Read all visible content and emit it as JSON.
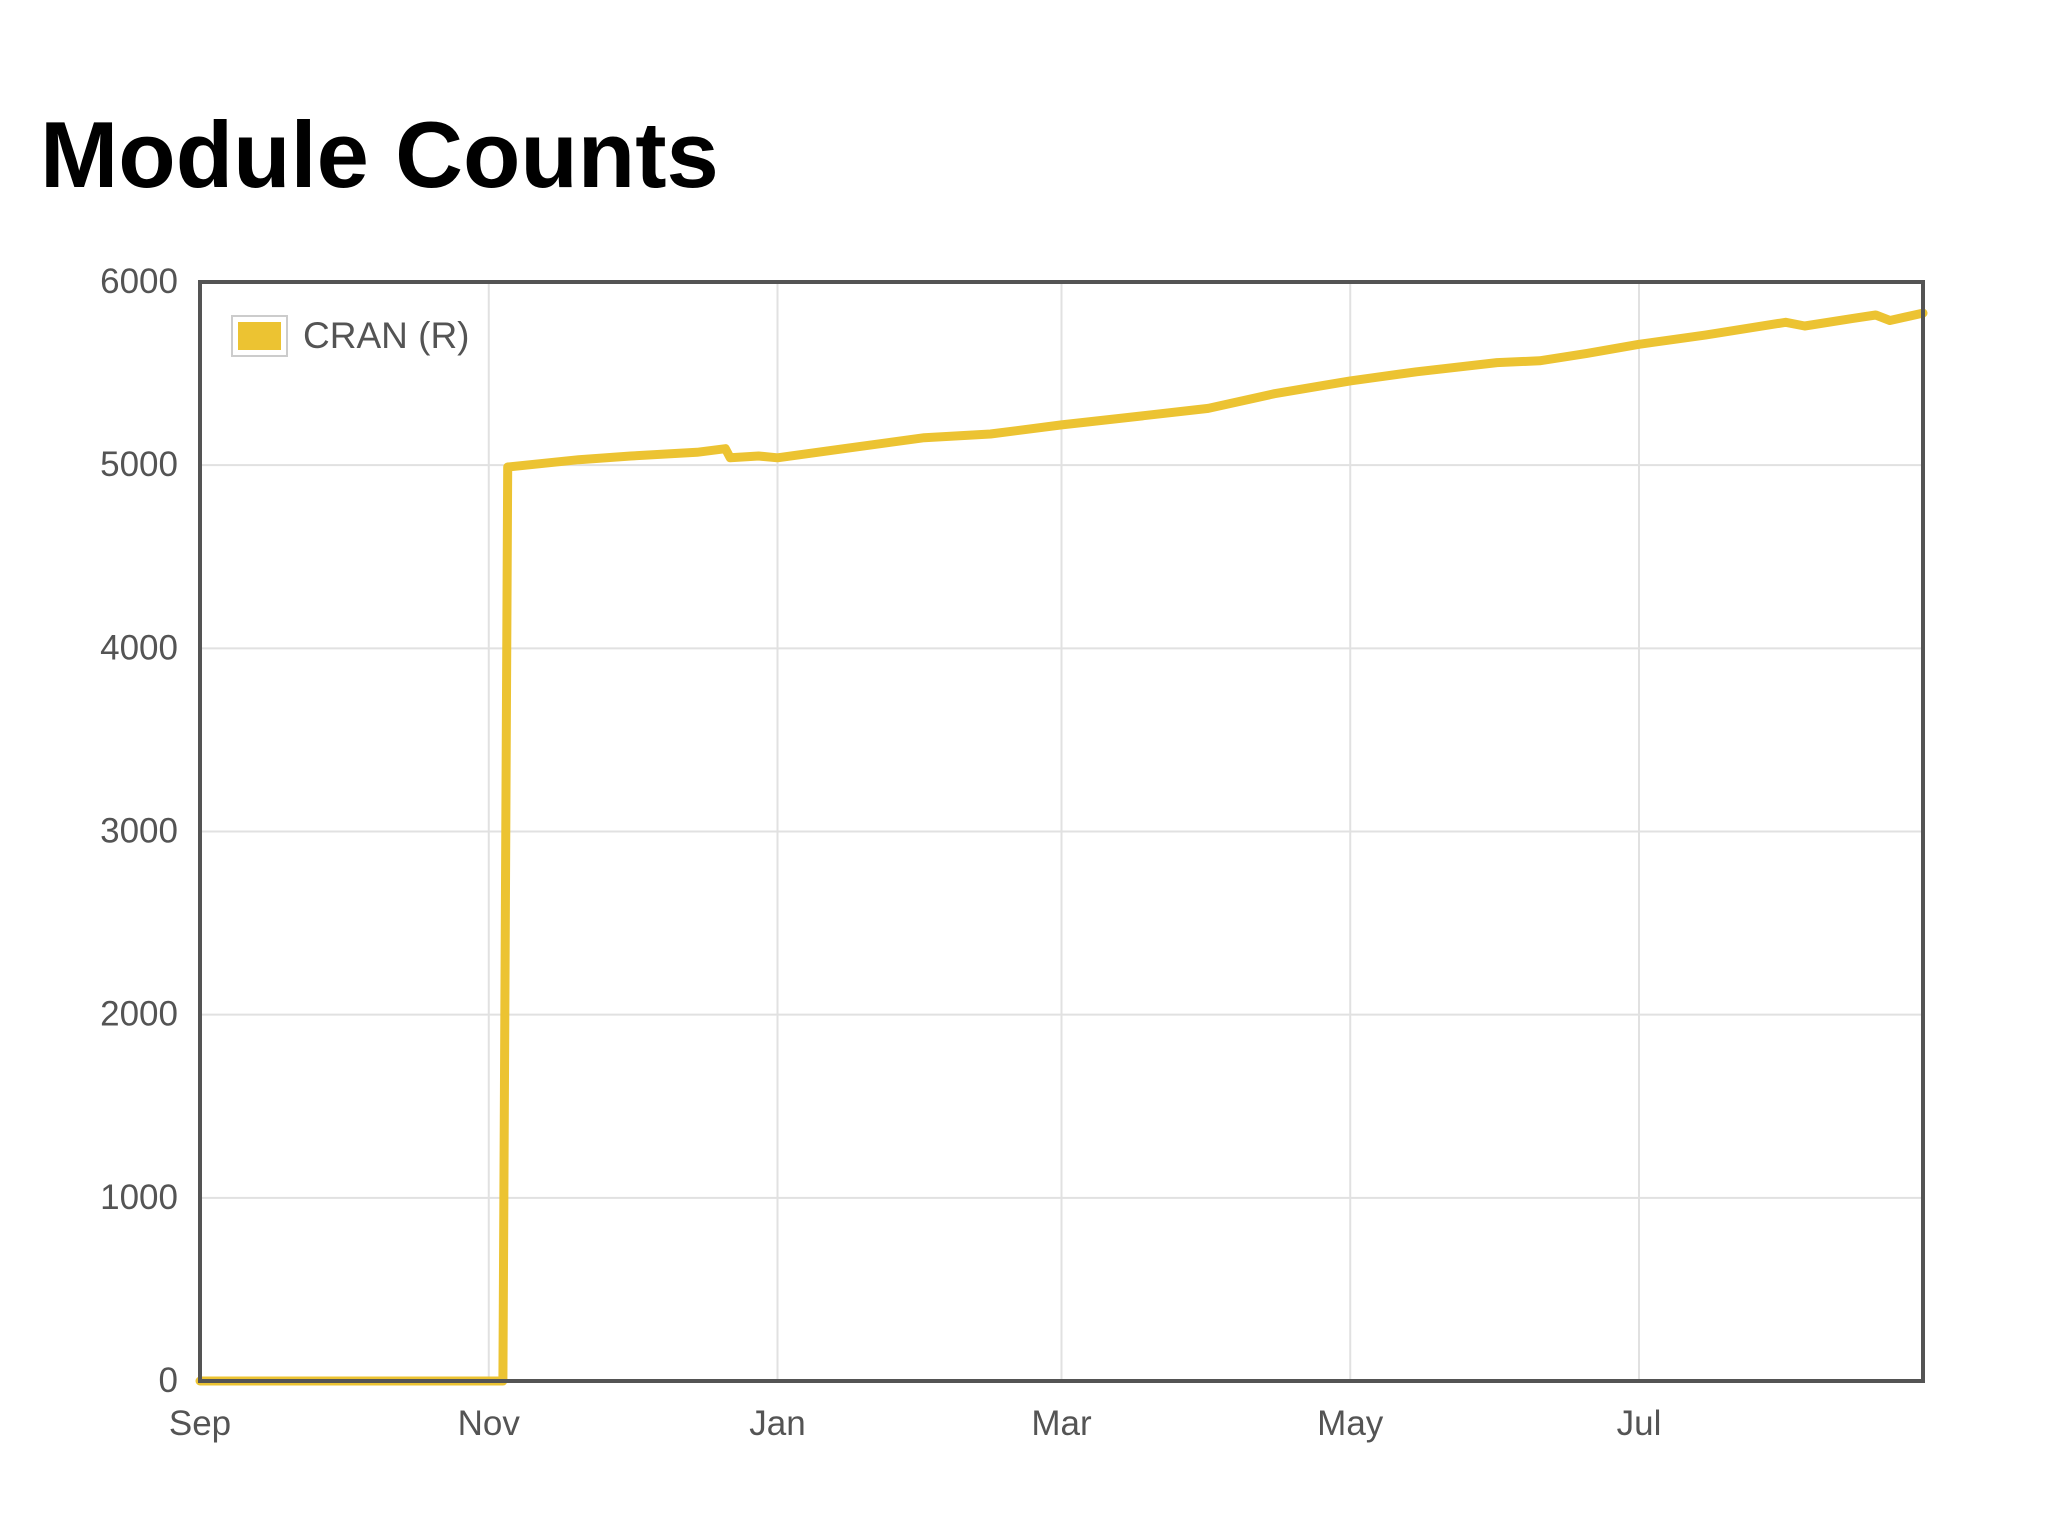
{
  "chart_data": {
    "type": "line",
    "title": "Module Counts",
    "xlabel": "",
    "ylabel": "",
    "x_ticks": [
      "Sep",
      "Nov",
      "Jan",
      "Mar",
      "May",
      "Jul"
    ],
    "y_ticks": [
      0,
      1000,
      2000,
      3000,
      4000,
      5000,
      6000
    ],
    "ylim": [
      0,
      6000
    ],
    "xlim": [
      "2015-09-01",
      "2016-08-30"
    ],
    "grid": true,
    "legend": "top-left",
    "series": [
      {
        "name": "CRAN (R)",
        "color": "#ecc332",
        "points": [
          [
            "2015-09-01",
            0
          ],
          [
            "2015-11-04",
            0
          ],
          [
            "2015-11-05",
            4990
          ],
          [
            "2015-11-20",
            5030
          ],
          [
            "2015-12-01",
            5050
          ],
          [
            "2015-12-15",
            5070
          ],
          [
            "2015-12-21",
            5090
          ],
          [
            "2015-12-22",
            5040
          ],
          [
            "2015-12-28",
            5050
          ],
          [
            "2016-01-01",
            5040
          ],
          [
            "2016-01-15",
            5090
          ],
          [
            "2016-02-01",
            5150
          ],
          [
            "2016-02-15",
            5170
          ],
          [
            "2016-03-01",
            5220
          ],
          [
            "2016-03-15",
            5260
          ],
          [
            "2016-04-01",
            5310
          ],
          [
            "2016-04-15",
            5390
          ],
          [
            "2016-05-01",
            5460
          ],
          [
            "2016-05-15",
            5510
          ],
          [
            "2016-06-01",
            5560
          ],
          [
            "2016-06-10",
            5570
          ],
          [
            "2016-06-20",
            5610
          ],
          [
            "2016-07-01",
            5660
          ],
          [
            "2016-07-15",
            5710
          ],
          [
            "2016-08-01",
            5780
          ],
          [
            "2016-08-05",
            5760
          ],
          [
            "2016-08-15",
            5800
          ],
          [
            "2016-08-20",
            5820
          ],
          [
            "2016-08-23",
            5790
          ],
          [
            "2016-08-30",
            5830
          ]
        ]
      }
    ]
  }
}
